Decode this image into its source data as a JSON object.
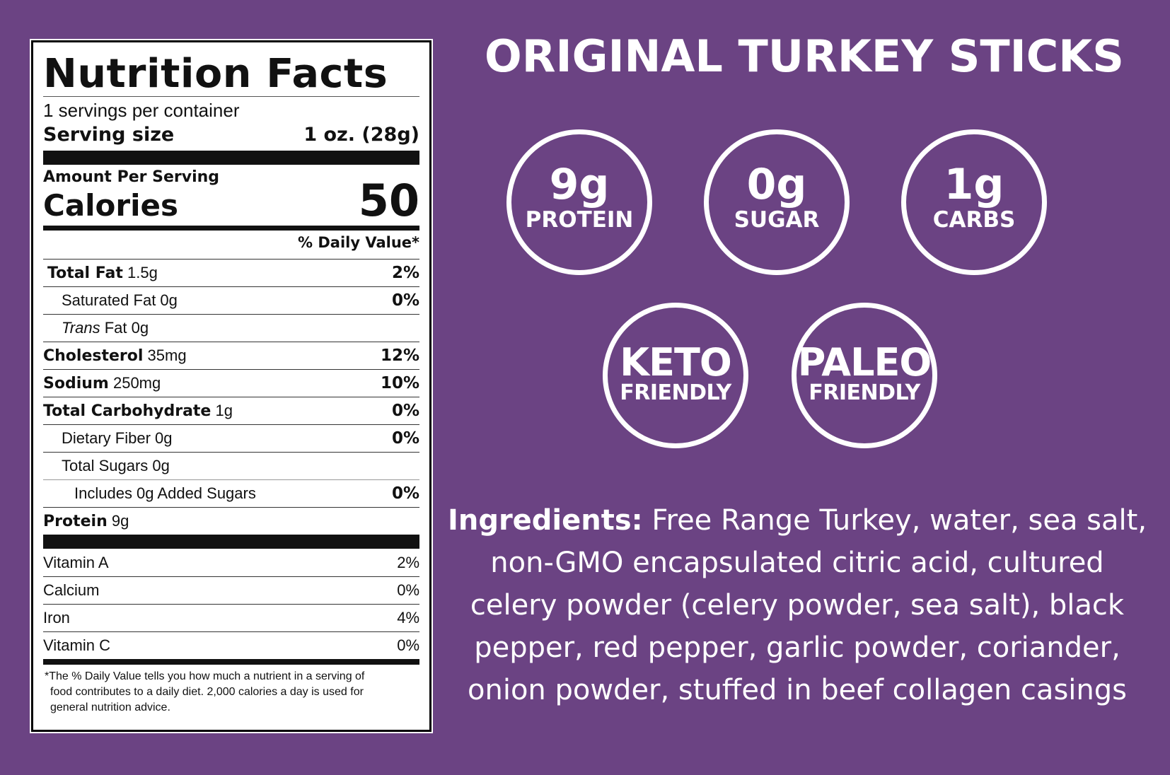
{
  "label": {
    "title": "Nutrition Facts",
    "servings_per_container": "1 servings per container",
    "serving_size_label": "Serving size",
    "serving_size_value": "1 oz. (28g)",
    "amount_per_serving": "Amount Per Serving",
    "calories_label": "Calories",
    "calories_value": "50",
    "daily_value_header": "% Daily Value*",
    "nutrients": [
      {
        "name": "Total Fat",
        "amount": "1.5g",
        "dv": "2%"
      },
      {
        "name": "Saturated Fat 0g",
        "dv": "0%"
      },
      {
        "name_italic": "Trans",
        "name_rest": "Fat 0g"
      },
      {
        "name": "Cholesterol",
        "amount": "35mg",
        "dv": "12%"
      },
      {
        "name": "Sodium",
        "amount": "250mg",
        "dv": "10%"
      },
      {
        "name": "Total Carbohydrate",
        "amount": "1g",
        "dv": "0%"
      },
      {
        "name": "Dietary Fiber 0g",
        "dv": "0%"
      },
      {
        "name": "Total Sugars 0g"
      },
      {
        "name": "Includes 0g Added Sugars",
        "dv": "0%"
      },
      {
        "name": "Protein",
        "amount": "9g"
      }
    ],
    "vitamins": [
      {
        "name": "Vitamin A",
        "dv": "2%"
      },
      {
        "name": "Calcium",
        "dv": "0%"
      },
      {
        "name": "Iron",
        "dv": "4%"
      },
      {
        "name": "Vitamin C",
        "dv": "0%"
      }
    ],
    "footnote_lines": [
      "*The % Daily Value tells you how much a nutrient in a serving of",
      "food contributes to a daily diet. 2,000 calories a day is used for",
      "general nutrition advice."
    ]
  },
  "headline": "ORIGINAL TURKEY STICKS",
  "badges": [
    {
      "big": "9g",
      "small": "PROTEIN"
    },
    {
      "big": "0g",
      "small": "SUGAR"
    },
    {
      "big": "1g",
      "small": "CARBS"
    },
    {
      "big": "KETO",
      "small": "FRIENDLY"
    },
    {
      "big": "PALEO",
      "small": "FRIENDLY"
    }
  ],
  "ingredients": {
    "label": "Ingredients:",
    "lines": [
      "Free Range Turkey, water, sea salt,",
      "non-GMO encapsulated citric acid, cultured",
      "celery powder (celery powder, sea salt), black",
      "pepper, red pepper, garlic powder, coriander,",
      "onion powder, stuffed in beef collagen casings"
    ]
  },
  "colors": {
    "background": "#6b4383",
    "text": "#ffffff"
  }
}
